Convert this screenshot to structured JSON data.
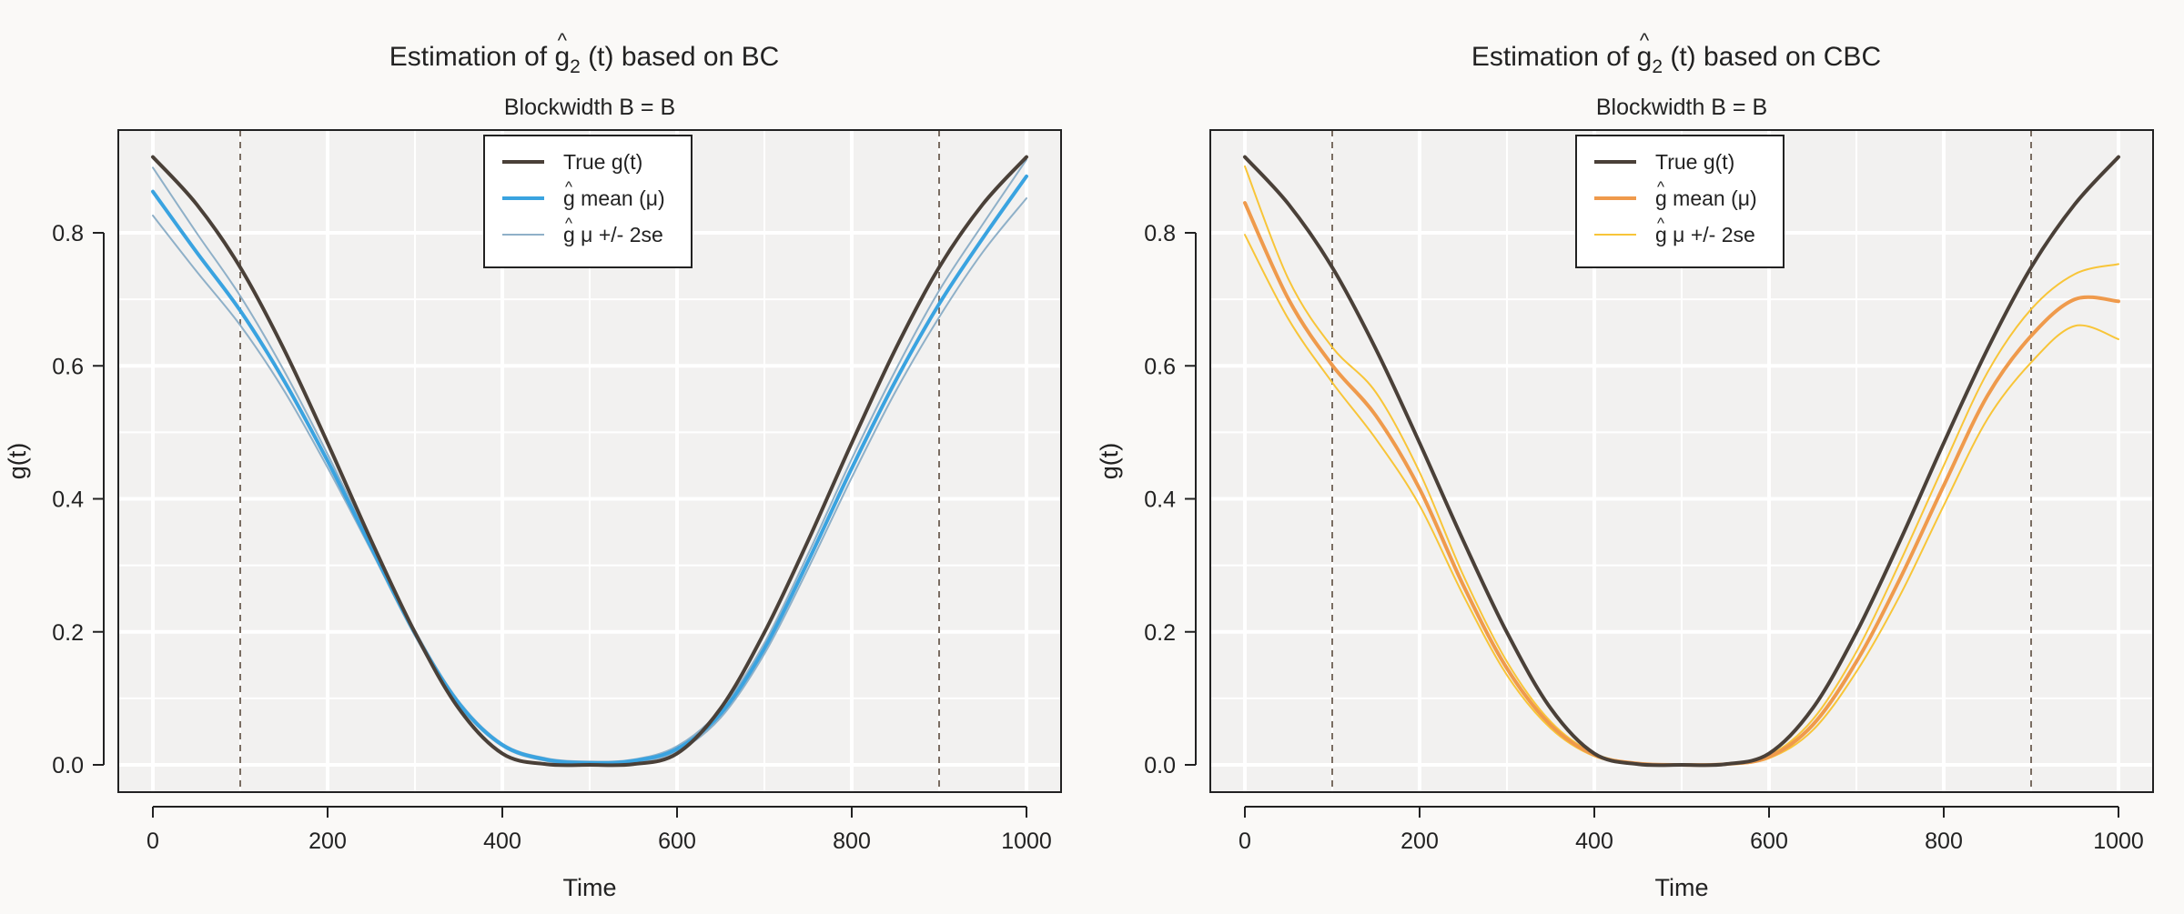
{
  "chart_data": [
    {
      "type": "line",
      "title": "Estimation of ĝ₂ (t) based on BC",
      "title_parts": {
        "prefix": "Estimation of ",
        "symbol": "g",
        "hat": "^",
        "subscript": "2",
        "suffix": " (t) based on BC"
      },
      "subtitle": "Blockwidth B = B",
      "xlabel": "Time",
      "ylabel": "g(t)",
      "xlim": [
        0,
        1000
      ],
      "ylim": [
        0,
        0.91
      ],
      "x_ticks": [
        0,
        200,
        400,
        600,
        800,
        1000
      ],
      "y_ticks": [
        0.0,
        0.2,
        0.4,
        0.6,
        0.8
      ],
      "x_tick_labels": [
        "0",
        "200",
        "400",
        "600",
        "800",
        "1000"
      ],
      "y_tick_labels": [
        "0.0",
        "0.2",
        "0.4",
        "0.6",
        "0.8"
      ],
      "vlines": [
        100,
        900
      ],
      "grid": true,
      "legend_position": "top-center",
      "x": [
        0,
        50,
        100,
        150,
        200,
        250,
        300,
        350,
        400,
        450,
        500,
        550,
        600,
        650,
        700,
        750,
        800,
        850,
        900,
        950,
        1000
      ],
      "series": [
        {
          "name": "True g(t)",
          "legend_parts": {
            "text": "True g(t)"
          },
          "color": "#4a4038",
          "width": 4,
          "values": [
            0.914,
            0.843,
            0.748,
            0.625,
            0.484,
            0.337,
            0.199,
            0.085,
            0.017,
            0.001,
            0.0,
            0.001,
            0.017,
            0.085,
            0.199,
            0.337,
            0.484,
            0.625,
            0.748,
            0.843,
            0.914
          ]
        },
        {
          "name": "ĝ mean (μ)",
          "legend_parts": {
            "hat_symbol": "g",
            "text": " mean (μ)"
          },
          "color": "#3aa3e0",
          "width": 4,
          "values": [
            0.862,
            0.771,
            0.683,
            0.578,
            0.457,
            0.327,
            0.198,
            0.093,
            0.03,
            0.008,
            0.003,
            0.006,
            0.024,
            0.077,
            0.175,
            0.306,
            0.446,
            0.577,
            0.693,
            0.792,
            0.885
          ]
        },
        {
          "name": "ĝ μ +/- 2se",
          "legend_parts": {
            "hat_symbol": "g",
            "text": " μ +/- 2se"
          },
          "color": "#8fb0c8",
          "width": 2,
          "values": [
            0.898,
            0.8,
            0.705,
            0.593,
            0.467,
            0.332,
            0.202,
            0.096,
            0.032,
            0.01,
            0.005,
            0.008,
            0.028,
            0.083,
            0.183,
            0.317,
            0.46,
            0.593,
            0.713,
            0.813,
            0.91
          ]
        },
        {
          "name": "",
          "color": "#8fb0c8",
          "width": 2,
          "values": [
            0.826,
            0.742,
            0.661,
            0.563,
            0.447,
            0.322,
            0.194,
            0.09,
            0.028,
            0.006,
            0.001,
            0.004,
            0.02,
            0.071,
            0.167,
            0.295,
            0.432,
            0.561,
            0.673,
            0.771,
            0.852
          ]
        }
      ]
    },
    {
      "type": "line",
      "title": "Estimation of ĝ₂ (t) based on CBC",
      "title_parts": {
        "prefix": "Estimation of ",
        "symbol": "g",
        "hat": "^",
        "subscript": "2",
        "suffix": " (t) based on CBC"
      },
      "subtitle": "Blockwidth B = B",
      "xlabel": "Time",
      "ylabel": "g(t)",
      "xlim": [
        0,
        1000
      ],
      "ylim": [
        0,
        0.91
      ],
      "x_ticks": [
        0,
        200,
        400,
        600,
        800,
        1000
      ],
      "y_ticks": [
        0.0,
        0.2,
        0.4,
        0.6,
        0.8
      ],
      "x_tick_labels": [
        "0",
        "200",
        "400",
        "600",
        "800",
        "1000"
      ],
      "y_tick_labels": [
        "0.0",
        "0.2",
        "0.4",
        "0.6",
        "0.8"
      ],
      "vlines": [
        100,
        900
      ],
      "grid": true,
      "legend_position": "top-center",
      "x": [
        0,
        50,
        100,
        150,
        200,
        250,
        300,
        350,
        400,
        450,
        500,
        550,
        600,
        650,
        700,
        750,
        800,
        850,
        900,
        950,
        1000
      ],
      "series": [
        {
          "name": "True g(t)",
          "legend_parts": {
            "text": "True g(t)"
          },
          "color": "#4a4038",
          "width": 4,
          "values": [
            0.914,
            0.843,
            0.748,
            0.625,
            0.484,
            0.337,
            0.199,
            0.085,
            0.017,
            0.001,
            0.0,
            0.001,
            0.017,
            0.085,
            0.199,
            0.337,
            0.484,
            0.625,
            0.748,
            0.843,
            0.914
          ]
        },
        {
          "name": "ĝ mean (μ)",
          "legend_parts": {
            "hat_symbol": "g",
            "text": " mean (μ)"
          },
          "color": "#ef9a4c",
          "width": 4,
          "values": [
            0.845,
            0.7,
            0.601,
            0.525,
            0.415,
            0.27,
            0.145,
            0.06,
            0.015,
            0.002,
            0.0,
            0.001,
            0.012,
            0.06,
            0.155,
            0.28,
            0.42,
            0.555,
            0.645,
            0.7,
            0.697
          ]
        },
        {
          "name": "ĝ μ +/- 2se",
          "legend_parts": {
            "hat_symbol": "g",
            "text": " μ +/- 2se"
          },
          "color": "#f8c538",
          "width": 2,
          "values": [
            0.9,
            0.73,
            0.628,
            0.56,
            0.44,
            0.285,
            0.155,
            0.065,
            0.017,
            0.003,
            0.001,
            0.002,
            0.014,
            0.068,
            0.17,
            0.305,
            0.45,
            0.59,
            0.685,
            0.738,
            0.753
          ]
        },
        {
          "name": "",
          "color": "#f8c538",
          "width": 2,
          "values": [
            0.797,
            0.67,
            0.575,
            0.49,
            0.39,
            0.255,
            0.135,
            0.055,
            0.013,
            0.001,
            0.0,
            0.0,
            0.01,
            0.052,
            0.14,
            0.255,
            0.39,
            0.52,
            0.605,
            0.66,
            0.64
          ]
        }
      ]
    }
  ]
}
